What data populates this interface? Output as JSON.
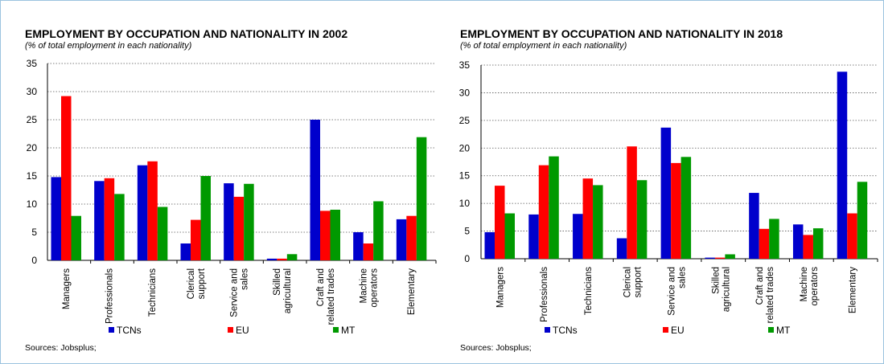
{
  "chart_data": [
    {
      "type": "bar",
      "title": "EMPLOYMENT BY OCCUPATION AND NATIONALITY IN 2002",
      "subtitle": "(% of total employment in each nationality)",
      "categories": [
        "Managers",
        "Professionals",
        "Technicians",
        "Clerical support",
        "Service and sales",
        "Skilled agricultural",
        "Craft and related trades",
        "Machine operators",
        "Elementary"
      ],
      "series": [
        {
          "name": "TCNs",
          "color": "#0000cc",
          "values": [
            14.8,
            14.1,
            16.9,
            3.0,
            13.7,
            0.3,
            25.0,
            5.0,
            7.3
          ]
        },
        {
          "name": "EU",
          "color": "#ff0000",
          "values": [
            29.2,
            14.6,
            17.6,
            7.2,
            11.3,
            0.3,
            8.8,
            3.0,
            7.9
          ]
        },
        {
          "name": "MT",
          "color": "#009900",
          "values": [
            7.9,
            11.8,
            9.5,
            15.0,
            13.6,
            1.1,
            9.0,
            10.5,
            21.9
          ]
        }
      ],
      "ylim": [
        0,
        35
      ],
      "yticks": [
        "0",
        "5",
        "10",
        "15",
        "20",
        "25",
        "30",
        "35"
      ],
      "grid": true,
      "legend": "bottom",
      "source": "Sources: Jobsplus;"
    },
    {
      "type": "bar",
      "title": "EMPLOYMENT BY OCCUPATION AND NATIONALITY IN 2018",
      "subtitle": "(% of total employment in each nationality)",
      "categories": [
        "Managers",
        "Professionals",
        "Technicians",
        "Clerical support",
        "Service and sales",
        "Skilled agricultural",
        "Craft and related trades",
        "Machine operators",
        "Elementary"
      ],
      "series": [
        {
          "name": "TCNs",
          "color": "#0000cc",
          "values": [
            4.8,
            8.0,
            8.1,
            3.7,
            23.7,
            0.2,
            11.9,
            6.2,
            33.8
          ]
        },
        {
          "name": "EU",
          "color": "#ff0000",
          "values": [
            13.2,
            16.9,
            14.5,
            20.3,
            17.3,
            0.2,
            5.4,
            4.3,
            8.2
          ]
        },
        {
          "name": "MT",
          "color": "#009900",
          "values": [
            8.2,
            18.5,
            13.3,
            14.2,
            18.4,
            0.8,
            7.2,
            5.5,
            13.9
          ]
        }
      ],
      "ylim": [
        0,
        35
      ],
      "yticks": [
        "0",
        "5",
        "10",
        "15",
        "20",
        "25",
        "30",
        "35"
      ],
      "grid": true,
      "legend": "bottom",
      "source": "Sources: Jobsplus;"
    }
  ]
}
